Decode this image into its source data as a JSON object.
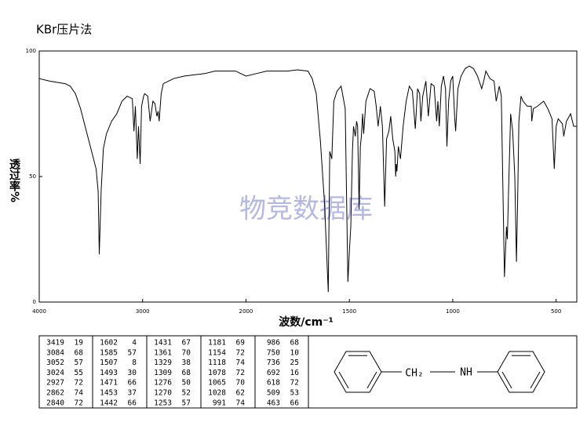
{
  "chart_data": {
    "type": "line",
    "title": "KBr压片法",
    "xlabel": "波数/cm⁻¹",
    "ylabel": "透过率%",
    "watermark": "物竞数据库",
    "xlim": [
      4000,
      400
    ],
    "xticks": [
      4000,
      3000,
      2000,
      1500,
      1000,
      500
    ],
    "ylim": [
      0,
      100
    ],
    "yticks": [
      0,
      50,
      100
    ],
    "series": [
      {
        "color": "#000000",
        "x": [
          4000,
          3900,
          3750,
          3700,
          3650,
          3600,
          3550,
          3500,
          3450,
          3430,
          3419,
          3400,
          3380,
          3350,
          3300,
          3250,
          3200,
          3150,
          3100,
          3084,
          3070,
          3052,
          3040,
          3024,
          3010,
          2990,
          2980,
          2950,
          2927,
          2900,
          2880,
          2862,
          2850,
          2840,
          2820,
          2800,
          2700,
          2600,
          2500,
          2400,
          2300,
          2200,
          2100,
          2050,
          2000,
          1950,
          1900,
          1800,
          1750,
          1700,
          1680,
          1660,
          1640,
          1620,
          1602,
          1595,
          1585,
          1575,
          1560,
          1540,
          1520,
          1507,
          1500,
          1493,
          1485,
          1480,
          1471,
          1465,
          1460,
          1453,
          1447,
          1442,
          1436,
          1431,
          1420,
          1400,
          1380,
          1370,
          1361,
          1350,
          1340,
          1329,
          1320,
          1309,
          1300,
          1290,
          1280,
          1276,
          1273,
          1270,
          1263,
          1253,
          1240,
          1225,
          1210,
          1195,
          1181,
          1170,
          1160,
          1154,
          1145,
          1130,
          1118,
          1105,
          1090,
          1078,
          1072,
          1065,
          1055,
          1045,
          1035,
          1028,
          1020,
          1010,
          1000,
          991,
          986,
          975,
          960,
          940,
          920,
          900,
          880,
          860,
          850,
          840,
          820,
          800,
          790,
          775,
          765,
          750,
          745,
          740,
          736,
          730,
          720,
          710,
          700,
          692,
          686,
          680,
          670,
          660,
          640,
          620,
          618,
          610,
          590,
          560,
          540,
          520,
          509,
          500,
          490,
          470,
          463,
          450,
          430,
          415,
          400
        ],
        "values": [
          89,
          88,
          87,
          86,
          83,
          77,
          69,
          61,
          53,
          44,
          19,
          45,
          61,
          67,
          72,
          75,
          80,
          82,
          81,
          68,
          78,
          57,
          70,
          55,
          78,
          82,
          83,
          82,
          72,
          80,
          79,
          74,
          76,
          72,
          83,
          87,
          89,
          90,
          90.5,
          91,
          92,
          92,
          92,
          91,
          90,
          91,
          92,
          92,
          92.5,
          92,
          89,
          83,
          64,
          39,
          4,
          60,
          57,
          80,
          84,
          86,
          77,
          8,
          20,
          30,
          60,
          70,
          66,
          72,
          70,
          37,
          62,
          66,
          75,
          67,
          80,
          85,
          84,
          78,
          70,
          78,
          70,
          38,
          65,
          68,
          74,
          65,
          60,
          50,
          55,
          52,
          62,
          57,
          70,
          80,
          86,
          84,
          69,
          85,
          83,
          72,
          82,
          88,
          74,
          87,
          86,
          72,
          80,
          70,
          86,
          90,
          85,
          62,
          80,
          88,
          90,
          74,
          68,
          85,
          90,
          93,
          94,
          93,
          90,
          85,
          88,
          92,
          89,
          88,
          80,
          86,
          82,
          10,
          20,
          30,
          25,
          45,
          75,
          68,
          50,
          16,
          40,
          72,
          82,
          80,
          78,
          78,
          72,
          77,
          78,
          80,
          77,
          73,
          53,
          70,
          73,
          71,
          66,
          72,
          75,
          70,
          70
        ]
      }
    ]
  },
  "peak_table": {
    "columns": [
      [
        [
          3419,
          19
        ],
        [
          3084,
          68
        ],
        [
          3052,
          57
        ],
        [
          3024,
          55
        ],
        [
          2927,
          72
        ],
        [
          2862,
          74
        ],
        [
          2840,
          72
        ]
      ],
      [
        [
          1602,
          4
        ],
        [
          1585,
          57
        ],
        [
          1507,
          8
        ],
        [
          1493,
          30
        ],
        [
          1471,
          66
        ],
        [
          1453,
          37
        ],
        [
          1442,
          66
        ]
      ],
      [
        [
          1431,
          67
        ],
        [
          1361,
          70
        ],
        [
          1329,
          38
        ],
        [
          1309,
          68
        ],
        [
          1276,
          50
        ],
        [
          1270,
          52
        ],
        [
          1253,
          57
        ]
      ],
      [
        [
          1181,
          69
        ],
        [
          1154,
          72
        ],
        [
          1118,
          74
        ],
        [
          1078,
          72
        ],
        [
          1065,
          70
        ],
        [
          1028,
          62
        ],
        [
          991,
          74
        ]
      ],
      [
        [
          986,
          68
        ],
        [
          750,
          10
        ],
        [
          736,
          25
        ],
        [
          692,
          16
        ],
        [
          618,
          72
        ],
        [
          509,
          53
        ],
        [
          463,
          66
        ]
      ]
    ]
  },
  "structure": {
    "group1": "CH₂",
    "group2": "NH"
  }
}
